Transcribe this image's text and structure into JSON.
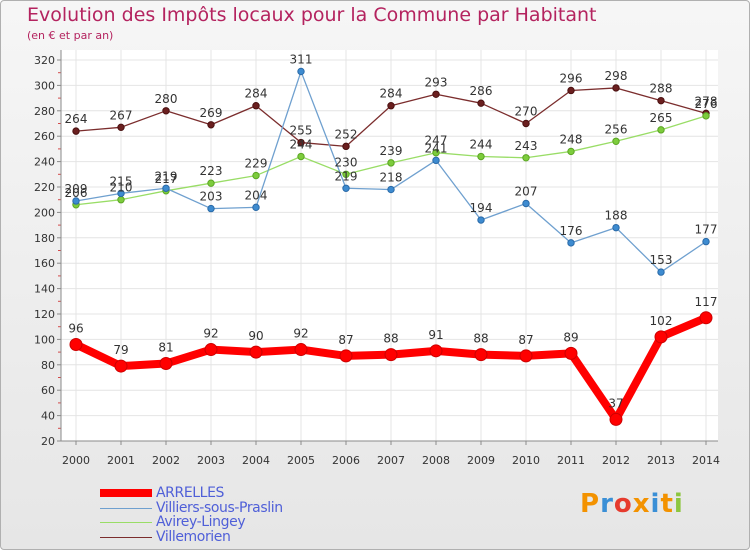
{
  "header": {
    "title": "Evolution des Impôts locaux pour la Commune par Habitant",
    "subtitle": "(en € et par an)"
  },
  "logo": {
    "text": "Proxiti",
    "letter_colors": [
      "#f39200",
      "#3a8fd6",
      "#e63b2e",
      "#f39200",
      "#3a8fd6",
      "#f39200",
      "#8dc63f"
    ]
  },
  "chart_data": {
    "type": "line",
    "title": "Evolution des Impôts locaux pour la Commune par Habitant",
    "subtitle": "(en € et par an)",
    "xlabel": "",
    "ylabel": "",
    "x": [
      "2000",
      "2001",
      "2002",
      "2003",
      "2004",
      "2005",
      "2006",
      "2007",
      "2008",
      "2009",
      "2010",
      "2011",
      "2012",
      "2013",
      "2014"
    ],
    "ylim": [
      20,
      320
    ],
    "yticks": [
      20,
      40,
      60,
      80,
      100,
      120,
      140,
      160,
      180,
      200,
      220,
      240,
      260,
      280,
      300,
      320
    ],
    "grid": true,
    "legend_position": "bottom-left",
    "series": [
      {
        "name": "ARRELLES",
        "color": "#ff0000",
        "values": [
          96,
          79,
          81,
          92,
          90,
          92,
          87,
          88,
          91,
          88,
          87,
          89,
          37,
          102,
          117
        ]
      },
      {
        "name": "Villiers-sous-Praslin",
        "color": "#6fa0cf",
        "values": [
          209,
          215,
          219,
          203,
          204,
          311,
          219,
          218,
          241,
          194,
          207,
          176,
          188,
          153,
          177
        ]
      },
      {
        "name": "Avirey-Lingey",
        "color": "#99dd66",
        "values": [
          206,
          210,
          217,
          223,
          229,
          244,
          230,
          239,
          247,
          244,
          243,
          248,
          256,
          265,
          276
        ]
      },
      {
        "name": "Villemorien",
        "color": "#7b2d2d",
        "values": [
          264,
          267,
          280,
          269,
          284,
          255,
          252,
          284,
          293,
          286,
          270,
          296,
          298,
          288,
          278
        ]
      }
    ]
  }
}
